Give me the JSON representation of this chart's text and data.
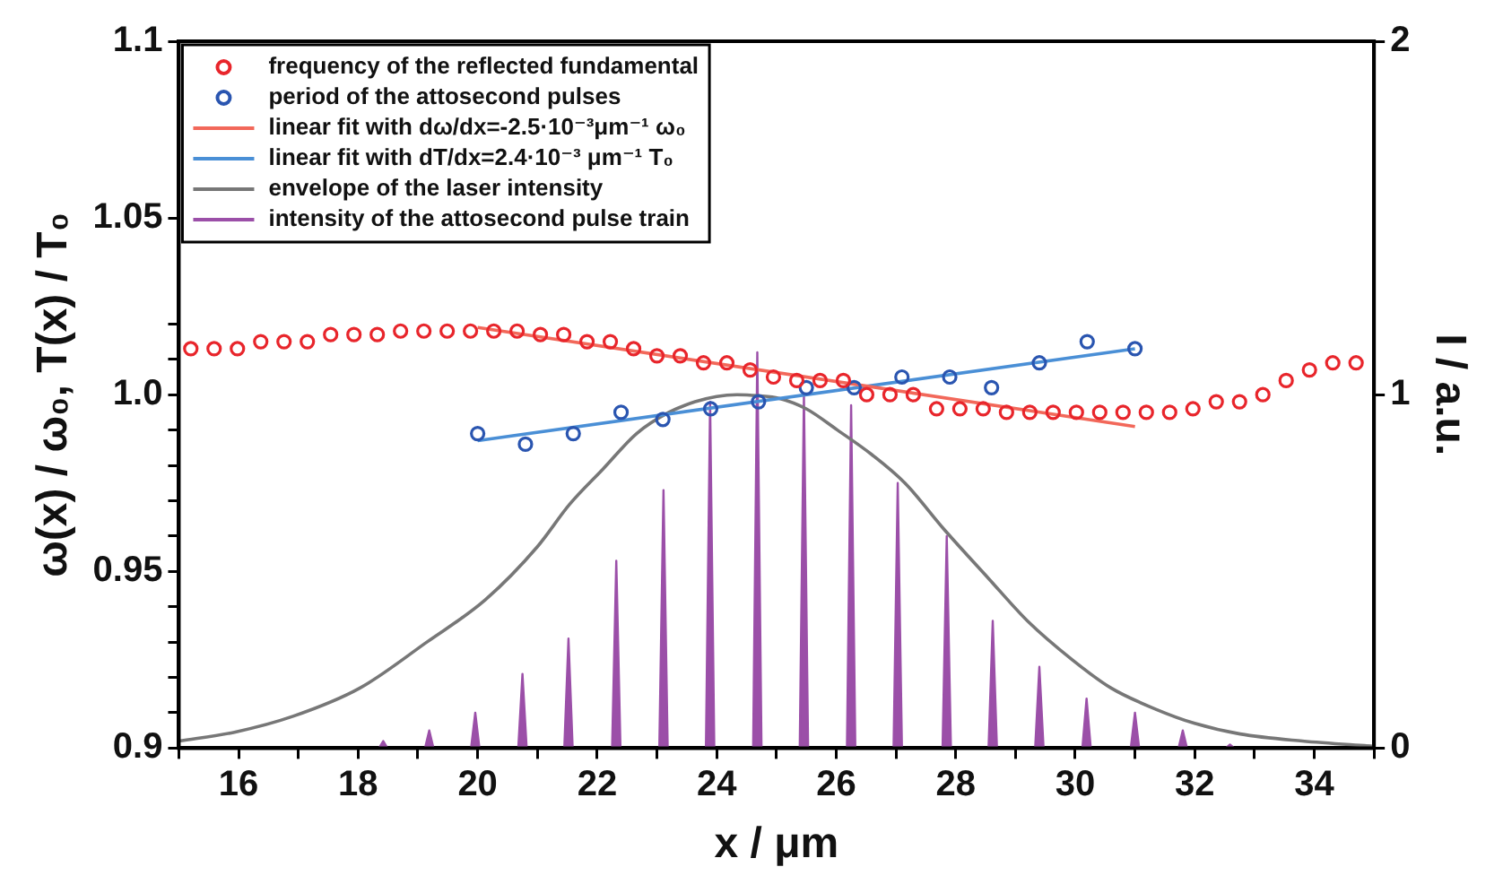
{
  "chart_data": {
    "type": "scatter",
    "xlabel": "x / μm",
    "ylabel": "ω(x) / ω₀, T(x) / T₀",
    "y2label": "I / a.u.",
    "xlim": [
      15,
      35
    ],
    "xticks": [
      {
        "value": 15,
        "label": null
      },
      16,
      {
        "value": 17,
        "label": null
      },
      18,
      {
        "value": 19,
        "label": null
      },
      20,
      {
        "value": 21,
        "label": null
      },
      22,
      {
        "value": 23,
        "label": null
      },
      24,
      {
        "value": 25,
        "label": null
      },
      26,
      {
        "value": 27,
        "label": null
      },
      28,
      {
        "value": 29,
        "label": null
      },
      30,
      {
        "value": 31,
        "label": null
      },
      32,
      {
        "value": 33,
        "label": null
      },
      34,
      {
        "value": 35,
        "label": null
      }
    ],
    "ylim": [
      0.9,
      1.1
    ],
    "yticks": [
      0.9,
      {
        "value": 0.91,
        "label": null
      },
      {
        "value": 0.92,
        "label": null
      },
      {
        "value": 0.93,
        "label": null
      },
      {
        "value": 0.94,
        "label": null
      },
      0.95,
      {
        "value": 0.96,
        "label": null
      },
      {
        "value": 0.97,
        "label": null
      },
      {
        "value": 0.98,
        "label": null
      },
      {
        "value": 0.99,
        "label": null
      },
      {
        "value": 1.0,
        "label": "1.0"
      },
      {
        "value": 1.01,
        "label": null
      },
      {
        "value": 1.02,
        "label": null
      },
      1.05,
      1.1
    ],
    "y2lim": [
      0,
      2
    ],
    "y2ticks": [
      0,
      1,
      2
    ],
    "grid": false,
    "legend": "top left",
    "series": [
      {
        "name": "frequency of the reflected fundamental",
        "marker": "circle",
        "color": "#e8252b",
        "x": [
          15.2,
          15.59,
          15.98,
          16.37,
          16.76,
          17.15,
          17.54,
          17.93,
          18.32,
          18.71,
          19.1,
          19.49,
          19.88,
          20.27,
          20.66,
          21.05,
          21.44,
          21.83,
          22.22,
          22.61,
          23.0,
          23.39,
          23.78,
          24.17,
          24.56,
          24.95,
          25.34,
          25.73,
          26.12,
          26.51,
          26.9,
          27.29,
          27.68,
          28.07,
          28.46,
          28.85,
          29.24,
          29.63,
          30.02,
          30.41,
          30.8,
          31.19,
          31.58,
          31.97,
          32.36,
          32.75,
          33.14,
          33.53,
          33.92,
          34.31,
          34.7
        ],
        "values": [
          1.013,
          1.013,
          1.013,
          1.015,
          1.015,
          1.015,
          1.017,
          1.017,
          1.017,
          1.018,
          1.018,
          1.018,
          1.018,
          1.018,
          1.018,
          1.017,
          1.017,
          1.015,
          1.015,
          1.013,
          1.011,
          1.011,
          1.009,
          1.009,
          1.007,
          1.005,
          1.004,
          1.004,
          1.004,
          1.0,
          1.0,
          1.0,
          0.996,
          0.996,
          0.996,
          0.995,
          0.995,
          0.995,
          0.995,
          0.995,
          0.995,
          0.995,
          0.995,
          0.996,
          0.998,
          0.998,
          1.0,
          1.004,
          1.007,
          1.009,
          1.009
        ]
      },
      {
        "name": "period of the attosecond pulses",
        "marker": "circle",
        "color": "#2a55b0",
        "x": [
          20.0,
          20.8,
          21.6,
          22.4,
          23.1,
          23.9,
          24.7,
          25.5,
          26.3,
          27.1,
          27.9,
          28.6,
          29.4,
          30.2,
          31.0
        ],
        "values": [
          0.989,
          0.986,
          0.989,
          0.995,
          0.993,
          0.996,
          0.998,
          1.002,
          1.002,
          1.005,
          1.005,
          1.002,
          1.009,
          1.015,
          1.013
        ]
      },
      {
        "name": "linear fit with dω/dx=-2.5·10⁻³μm⁻¹ ω₀",
        "type": "line",
        "marker": "none",
        "color": "#f2685a",
        "x": [
          20,
          31
        ],
        "values": [
          1.019,
          0.991
        ]
      },
      {
        "name": "linear fit with dT/dx=2.4·10⁻³ μm⁻¹ T₀",
        "type": "line",
        "marker": "none",
        "color": "#4a8fd6",
        "x": [
          20,
          31
        ],
        "values": [
          0.987,
          1.013
        ]
      },
      {
        "name": "envelope of the laser intensity",
        "type": "line",
        "axis": "y2",
        "marker": "none",
        "color": "#777777",
        "x": [
          15,
          15.93,
          16.91,
          18.03,
          19.15,
          20.13,
          21.0,
          21.54,
          22.1,
          22.66,
          23.2,
          23.64,
          24.0,
          24.34,
          24.7,
          25.04,
          25.5,
          26.02,
          26.6,
          27.15,
          27.8,
          28.55,
          29.2,
          29.95,
          30.6,
          31.35,
          32.0,
          32.76,
          33.8,
          35
        ],
        "values": [
          0.02,
          0.045,
          0.09,
          0.17,
          0.3,
          0.42,
          0.57,
          0.69,
          0.79,
          0.89,
          0.95,
          0.98,
          0.995,
          1.0,
          0.997,
          0.99,
          0.96,
          0.9,
          0.83,
          0.75,
          0.62,
          0.48,
          0.36,
          0.25,
          0.17,
          0.11,
          0.07,
          0.04,
          0.02,
          0.005
        ]
      },
      {
        "name": "intensity of the attosecond pulse train",
        "type": "area",
        "axis": "y2",
        "marker": "none",
        "color": "#9b4fa8",
        "x": [
          15,
          18.35,
          18.42,
          18.49,
          19.12,
          19.19,
          19.26,
          19.89,
          19.96,
          20.03,
          20.68,
          20.75,
          20.82,
          21.45,
          21.52,
          21.59,
          22.25,
          22.32,
          22.39,
          23.04,
          23.11,
          23.18,
          23.82,
          23.89,
          23.96,
          24.61,
          24.68,
          24.75,
          25.39,
          25.46,
          25.53,
          26.18,
          26.25,
          26.32,
          26.96,
          27.03,
          27.1,
          27.78,
          27.85,
          27.92,
          28.55,
          28.62,
          28.69,
          29.33,
          29.4,
          29.47,
          30.12,
          30.19,
          30.26,
          30.93,
          31.0,
          31.07,
          31.73,
          31.8,
          31.87,
          32.52,
          32.59,
          32.66,
          35
        ],
        "values": [
          0,
          0,
          0.02,
          0,
          0,
          0.05,
          0,
          0,
          0.1,
          0,
          0,
          0.21,
          0,
          0,
          0.31,
          0,
          0,
          0.53,
          0,
          0,
          0.73,
          0,
          0,
          0.98,
          0,
          0,
          1.12,
          0,
          0,
          1.0,
          0,
          0,
          0.97,
          0,
          0,
          0.75,
          0,
          0,
          0.6,
          0,
          0,
          0.36,
          0,
          0,
          0.23,
          0,
          0,
          0.14,
          0,
          0,
          0.1,
          0,
          0,
          0.05,
          0,
          0,
          0.01,
          0,
          0
        ]
      }
    ]
  }
}
